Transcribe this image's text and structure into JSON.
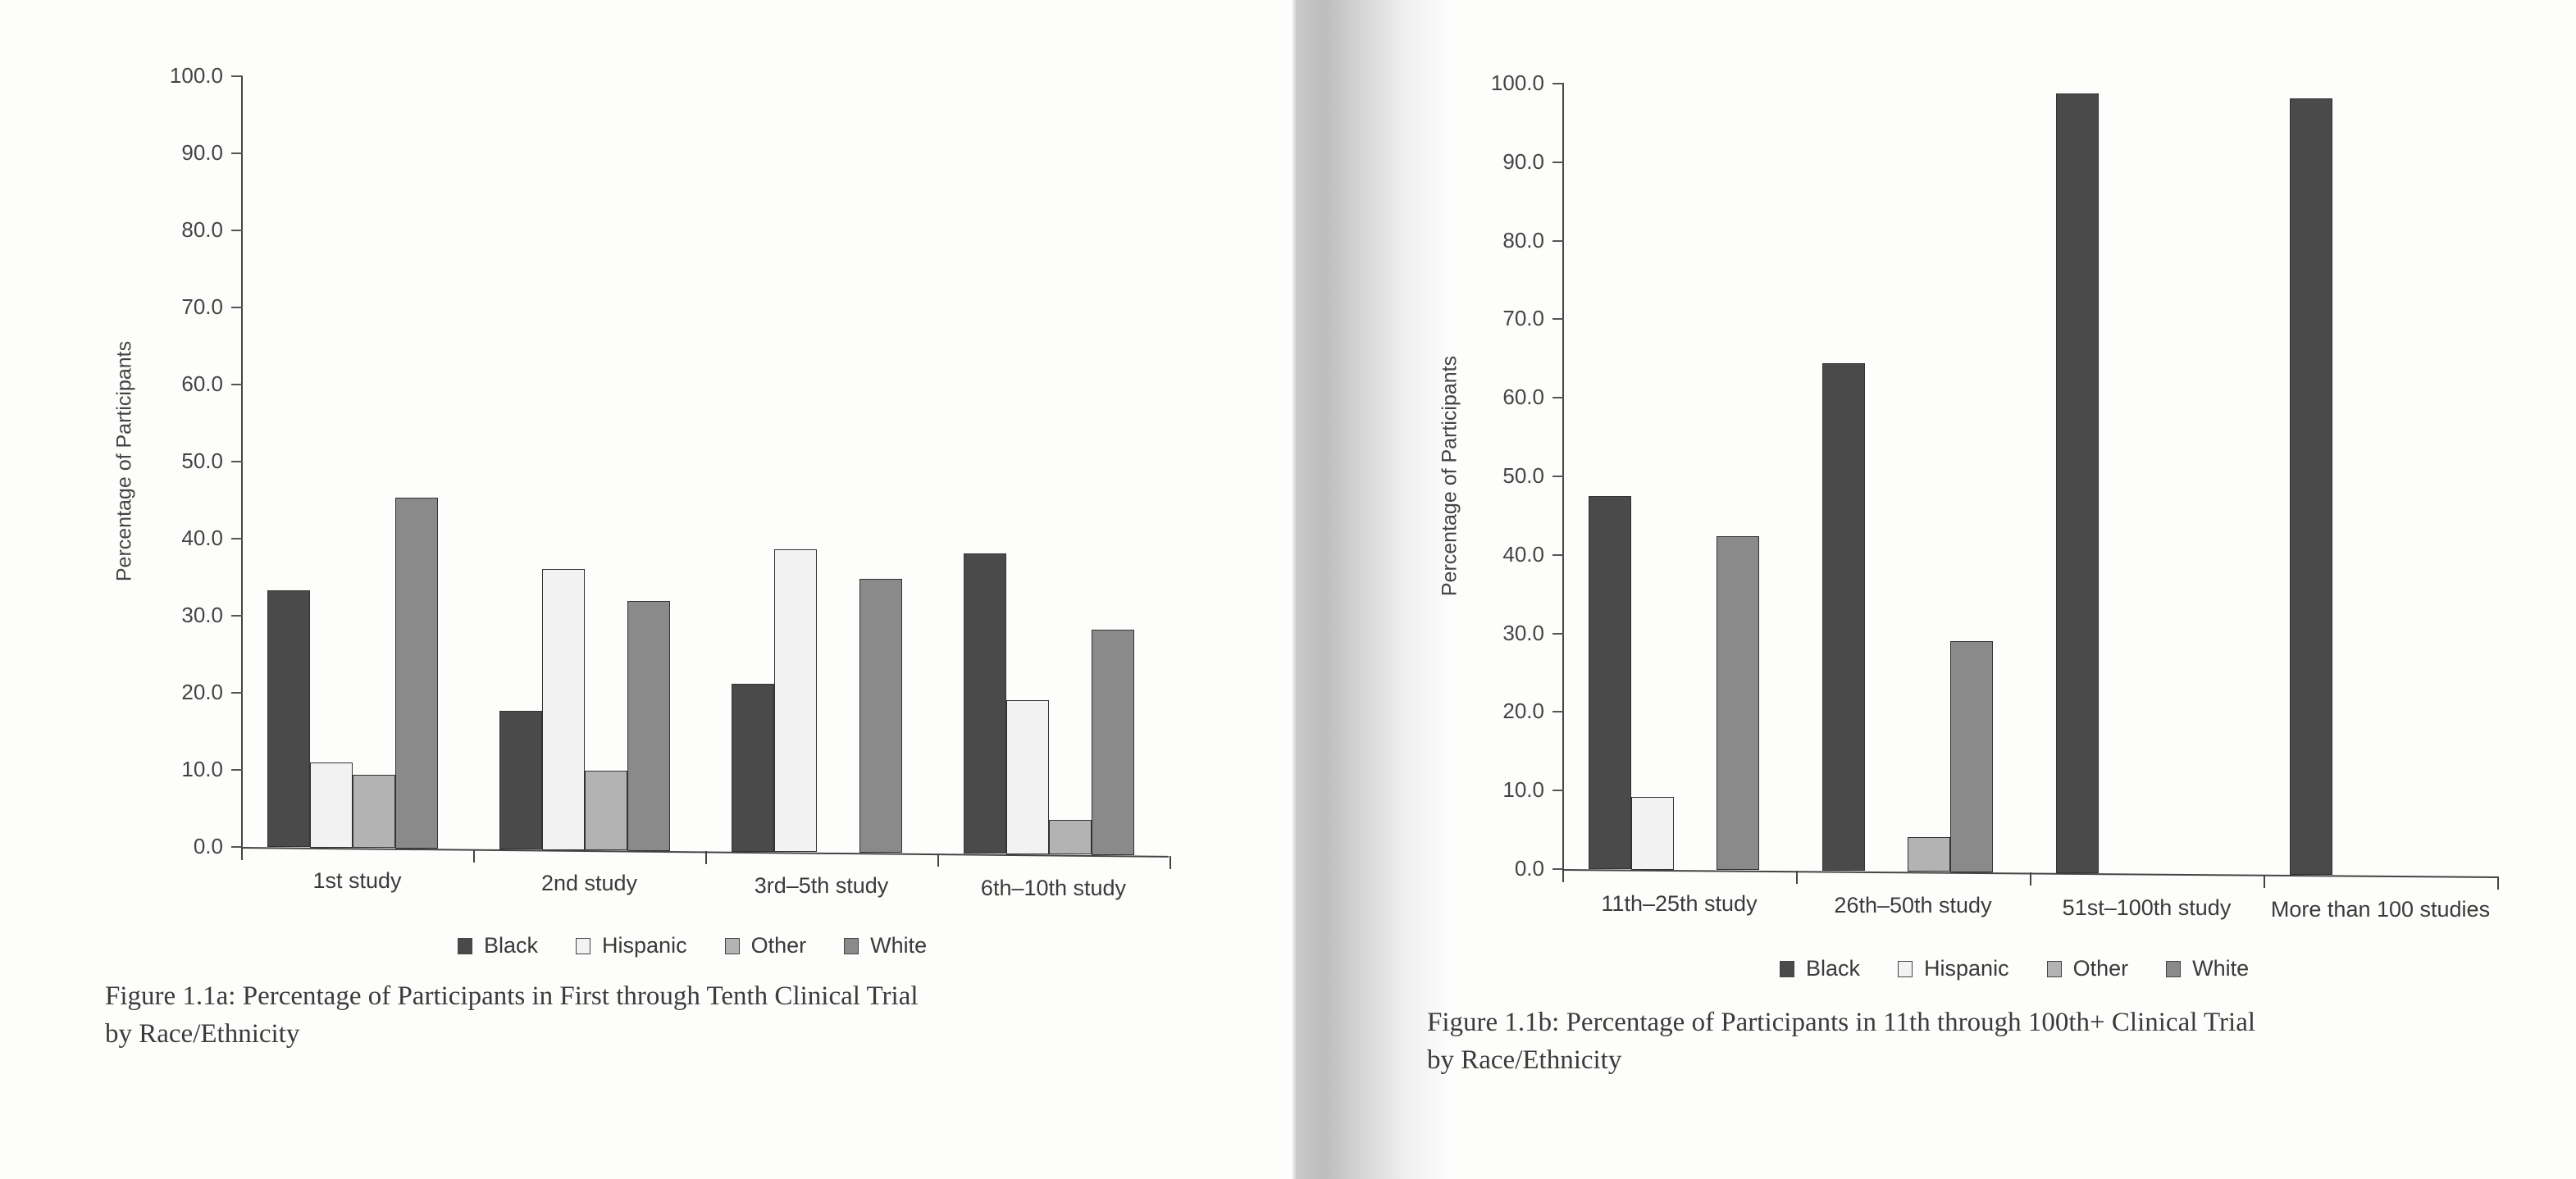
{
  "colors": {
    "Black": "#4a4a4a",
    "Hispanic": "#f2f2f2",
    "Other": "#b3b3b3",
    "White": "#8a8a8a"
  },
  "legend": [
    "Black",
    "Hispanic",
    "Other",
    "White"
  ],
  "figures": {
    "a": {
      "ylabel": "Percentage of Participants",
      "yticks": [
        "0.0",
        "10.0",
        "20.0",
        "30.0",
        "40.0",
        "50.0",
        "60.0",
        "70.0",
        "80.0",
        "90.0",
        "100.0"
      ],
      "categories": [
        "1st study",
        "2nd study",
        "3rd–5th study",
        "6th–10th study"
      ],
      "caption_line1": "Figure 1.1a: Percentage of Participants in First through Tenth Clinical Trial",
      "caption_line2": "by Race/Ethnicity"
    },
    "b": {
      "ylabel": "Percentage of Participants",
      "yticks": [
        "0.0",
        "10.0",
        "20.0",
        "30.0",
        "40.0",
        "50.0",
        "60.0",
        "70.0",
        "80.0",
        "90.0",
        "100.0"
      ],
      "categories": [
        "11th–25th study",
        "26th–50th study",
        "51st–100th study",
        "More than 100 studies"
      ],
      "caption_line1": "Figure 1.1b: Percentage of Participants in 11th through 100th+ Clinical Trial",
      "caption_line2": "by Race/Ethnicity"
    }
  },
  "chart_data": [
    {
      "type": "bar",
      "title": "Figure 1.1a: Percentage of Participants in First through Tenth Clinical Trial by Race/Ethnicity",
      "xlabel": "",
      "ylabel": "Percentage of Participants",
      "ylim": [
        0,
        100
      ],
      "yticks": [
        0,
        10,
        20,
        30,
        40,
        50,
        60,
        70,
        80,
        90,
        100
      ],
      "grid": false,
      "legend_position": "bottom",
      "categories": [
        "1st study",
        "2nd study",
        "3rd–5th study",
        "6th–10th study"
      ],
      "series": [
        {
          "name": "Black",
          "values": [
            33.3,
            18.0,
            21.8,
            39.0
          ]
        },
        {
          "name": "Hispanic",
          "values": [
            11.0,
            36.4,
            39.3,
            20.0
          ]
        },
        {
          "name": "Other",
          "values": [
            9.5,
            10.3,
            0.0,
            4.5
          ]
        },
        {
          "name": "White",
          "values": [
            45.5,
            32.4,
            35.6,
            29.3
          ]
        }
      ]
    },
    {
      "type": "bar",
      "title": "Figure 1.1b: Percentage of Participants in 11th through 100th+ Clinical Trial by Race/Ethnicity",
      "xlabel": "",
      "ylabel": "Percentage of Participants",
      "ylim": [
        0,
        100
      ],
      "yticks": [
        0,
        10,
        20,
        30,
        40,
        50,
        60,
        70,
        80,
        90,
        100
      ],
      "grid": false,
      "legend_position": "bottom",
      "categories": [
        "11th–25th study",
        "26th–50th study",
        "51st–100th study",
        "More than 100 studies"
      ],
      "series": [
        {
          "name": "Black",
          "values": [
            47.5,
            64.7,
            99.2,
            98.9
          ]
        },
        {
          "name": "Hispanic",
          "values": [
            9.3,
            0.0,
            0.0,
            0.0
          ]
        },
        {
          "name": "Other",
          "values": [
            0.0,
            4.4,
            0.0,
            0.0
          ]
        },
        {
          "name": "White",
          "values": [
            42.5,
            29.4,
            0.0,
            0.0
          ]
        }
      ]
    }
  ]
}
